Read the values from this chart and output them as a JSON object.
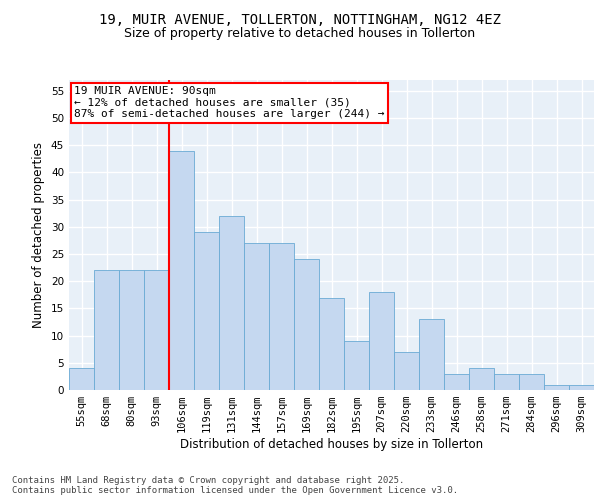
{
  "title_line1": "19, MUIR AVENUE, TOLLERTON, NOTTINGHAM, NG12 4EZ",
  "title_line2": "Size of property relative to detached houses in Tollerton",
  "xlabel": "Distribution of detached houses by size in Tollerton",
  "ylabel": "Number of detached properties",
  "categories": [
    "55sqm",
    "68sqm",
    "80sqm",
    "93sqm",
    "106sqm",
    "119sqm",
    "131sqm",
    "144sqm",
    "157sqm",
    "169sqm",
    "182sqm",
    "195sqm",
    "207sqm",
    "220sqm",
    "233sqm",
    "246sqm",
    "258sqm",
    "271sqm",
    "284sqm",
    "296sqm",
    "309sqm"
  ],
  "values": [
    4,
    22,
    22,
    22,
    44,
    29,
    32,
    27,
    27,
    24,
    17,
    9,
    18,
    7,
    13,
    3,
    4,
    3,
    3,
    1,
    1
  ],
  "bar_color": "#c5d8f0",
  "bar_edge_color": "#6aaad4",
  "bar_width": 1.0,
  "vline_index": 4,
  "vline_color": "red",
  "annotation_text": "19 MUIR AVENUE: 90sqm\n← 12% of detached houses are smaller (35)\n87% of semi-detached houses are larger (244) →",
  "annotation_box_color": "white",
  "annotation_box_edge_color": "red",
  "ylim": [
    0,
    57
  ],
  "yticks": [
    0,
    5,
    10,
    15,
    20,
    25,
    30,
    35,
    40,
    45,
    50,
    55
  ],
  "background_color": "#e8f0f8",
  "grid_color": "white",
  "footnote": "Contains HM Land Registry data © Crown copyright and database right 2025.\nContains public sector information licensed under the Open Government Licence v3.0.",
  "title_fontsize": 10,
  "subtitle_fontsize": 9,
  "axis_label_fontsize": 8.5,
  "tick_fontsize": 7.5,
  "annotation_fontsize": 8,
  "footnote_fontsize": 6.5
}
